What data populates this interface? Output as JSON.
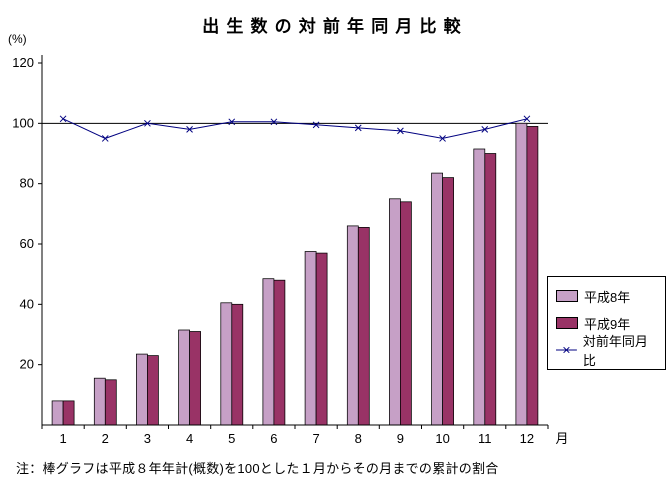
{
  "title": "出生数の対前年同月比較",
  "y_axis": {
    "unit_label": "(%)"
  },
  "x_axis": {
    "suffix_label": "月"
  },
  "note": "注：棒グラフは平成８年年計(概数)を100とした１月からその月までの累計の割合",
  "chart_data": {
    "type": "bar+line",
    "title": "出生数の対前年同月比較",
    "categories": [
      "1",
      "2",
      "3",
      "4",
      "5",
      "6",
      "7",
      "8",
      "9",
      "10",
      "11",
      "12"
    ],
    "series": [
      {
        "name": "平成8年",
        "type": "bar",
        "color": "#c6a0c6",
        "values": [
          8,
          15.5,
          23.5,
          31.5,
          40.5,
          48.5,
          57.5,
          66,
          75,
          83.5,
          91.5,
          100
        ]
      },
      {
        "name": "平成9年",
        "type": "bar",
        "color": "#993366",
        "values": [
          8,
          15,
          23,
          31,
          40,
          48,
          57,
          65.5,
          74,
          82,
          90,
          99
        ]
      },
      {
        "name": "対前年同月比",
        "type": "line",
        "color": "#000080",
        "marker": "x",
        "values": [
          101.5,
          95,
          100,
          98,
          100.5,
          100.5,
          99.5,
          98.5,
          97.5,
          95,
          98,
          101.5
        ]
      }
    ],
    "ylim": [
      0,
      120
    ],
    "yticks": [
      20,
      40,
      60,
      80,
      100,
      120
    ],
    "ylabel": "(%)",
    "xlabel": "月",
    "reference_line": 100,
    "grid": false,
    "legend_position": "right"
  }
}
